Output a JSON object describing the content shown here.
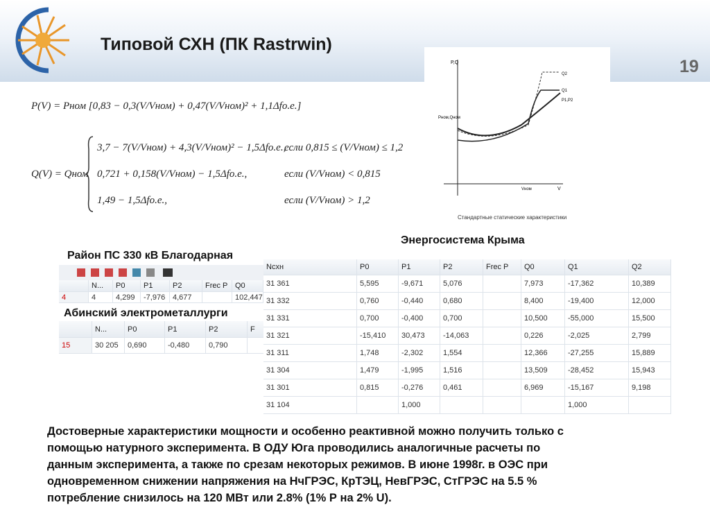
{
  "header": {
    "title": "Типовой СХН (ПК Rastrwin)",
    "page_number": "19"
  },
  "formulas": {
    "p": "P(V) = Pном [0,83 − 0,3(V/Vном) + 0,47(V/Vном)² + 1,1Δfо.е.]",
    "q_lhs": "Q(V) = Qном",
    "q_cases": [
      {
        "expr": "3,7 − 7(V/Vном) + 4,3(V/Vном)² − 1,5Δfо.е.,",
        "cond": "если  0,815 ≤ (V/Vном) ≤ 1,2"
      },
      {
        "expr": "0,721 + 0,158(V/Vном) − 1,5Δfо.е.,",
        "cond": "если  (V/Vном) < 0,815"
      },
      {
        "expr": "1,49 − 1,5Δfо.е.,",
        "cond": "если  (V/Vном) > 1,2"
      }
    ]
  },
  "graph": {
    "y_label": "P,Q",
    "x_label": "V",
    "x_mark": "Vном",
    "y_mark": "Pном,Qном",
    "curve_labels": [
      "Q2",
      "Q1",
      "P1,P2"
    ],
    "caption": "Стандартные статические характеристики"
  },
  "crimea": {
    "label": "Энергосистема Крыма",
    "table": {
      "columns": [
        "Nсхн",
        "P0",
        "P1",
        "P2",
        "Frec P",
        "Q0",
        "Q1",
        "Q2"
      ],
      "rows": [
        {
          "cells": [
            "31 361",
            "5,595",
            "-9,671",
            "5,076",
            null,
            "7,973",
            "-17,362",
            "10,389"
          ]
        },
        {
          "cells": [
            "31 332",
            "0,760",
            "-0,440",
            "0,680",
            null,
            "8,400",
            "-19,400",
            "12,000"
          ]
        },
        {
          "cells": [
            "31 331",
            "0,700",
            "-0,400",
            "0,700",
            null,
            "10,500",
            "-55,000",
            "15,500"
          ]
        },
        {
          "cells": [
            "31 321",
            "-15,410",
            "30,473",
            "-14,063",
            null,
            "0,226",
            "-2,025",
            "2,799"
          ]
        },
        {
          "cells": [
            "31 311",
            "1,748",
            "-2,302",
            "1,554",
            null,
            "12,366",
            "-27,255",
            "15,889"
          ]
        },
        {
          "cells": [
            "31 304",
            "1,479",
            "-1,995",
            "1,516",
            null,
            "13,509",
            "-28,452",
            "15,943"
          ]
        },
        {
          "cells": [
            "31 301",
            "0,815",
            "-0,276",
            "0,461",
            null,
            "6,969",
            "-15,167",
            "9,198"
          ]
        },
        {
          "cells": [
            "31 104",
            null,
            "1,000",
            null,
            null,
            null,
            "1,000",
            null
          ]
        }
      ]
    }
  },
  "blagodarnaya": {
    "label": "Район ПС 330 кВ Благодарная",
    "table": {
      "columns": [
        "N...",
        "P0",
        "P1",
        "P2",
        "Frec P",
        "Q0"
      ],
      "rows": [
        {
          "label": "4",
          "cells": [
            "4",
            "4,299",
            "-7,976",
            "4,677",
            null,
            "102,447"
          ]
        }
      ]
    }
  },
  "abinsky": {
    "label": "Абинский электрометаллурги",
    "table": {
      "columns": [
        "N...",
        "P0",
        "P1",
        "P2",
        "F"
      ],
      "rows": [
        {
          "label": "15",
          "cells": [
            "30 205",
            "0,690",
            "-0,480",
            "0,790",
            null
          ]
        }
      ]
    }
  },
  "body_text": [
    "Достоверные характеристики мощности и особенно реактивной можно получить только с",
    "помощью натурного эксперимента.  В ОДУ Юга проводились аналогичные расчеты по",
    "данным эксперимента, а также по срезам некоторых режимов. В июне 1998г. в ОЭС при",
    "одновременном снижении напряжения на НчГРЭС, КрТЭЦ, НевГРЭС, СтГРЭС на 5.5 %",
    "потребление снизилось на 120 МВт или 2.8% (1% Р на 2% U)."
  ]
}
